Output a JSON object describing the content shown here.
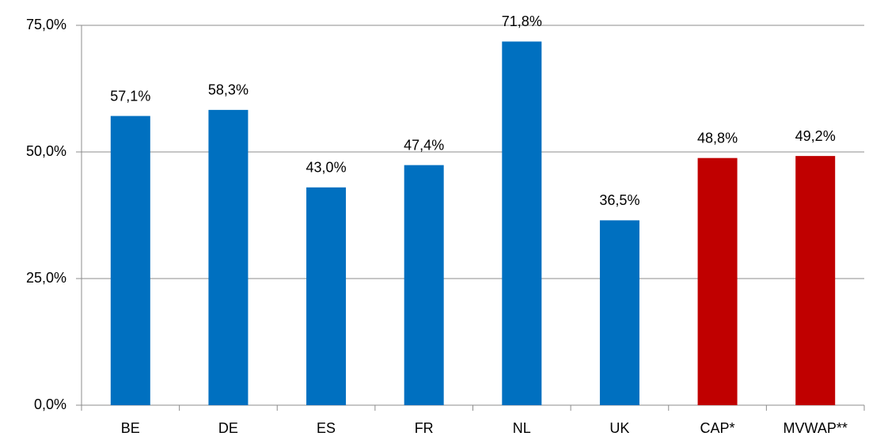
{
  "chart_data": {
    "type": "bar",
    "categories": [
      "BE",
      "DE",
      "ES",
      "FR",
      "NL",
      "UK",
      "CAP*",
      "MVWAP**"
    ],
    "values": [
      57.1,
      58.3,
      43.0,
      47.4,
      71.8,
      36.5,
      48.8,
      49.2
    ],
    "value_labels": [
      "57,1%",
      "58,3%",
      "43,0%",
      "47,4%",
      "71,8%",
      "36,5%",
      "48,8%",
      "49,2%"
    ],
    "colors": [
      "#0070c0",
      "#0070c0",
      "#0070c0",
      "#0070c0",
      "#0070c0",
      "#0070c0",
      "#c00000",
      "#c00000"
    ],
    "ylim": [
      0,
      75
    ],
    "yticks": [
      {
        "value": 0,
        "label": "0,0%"
      },
      {
        "value": 25,
        "label": "25,0%"
      },
      {
        "value": 50,
        "label": "50,0%"
      },
      {
        "value": 75,
        "label": "75,0%"
      }
    ],
    "grid": true
  }
}
